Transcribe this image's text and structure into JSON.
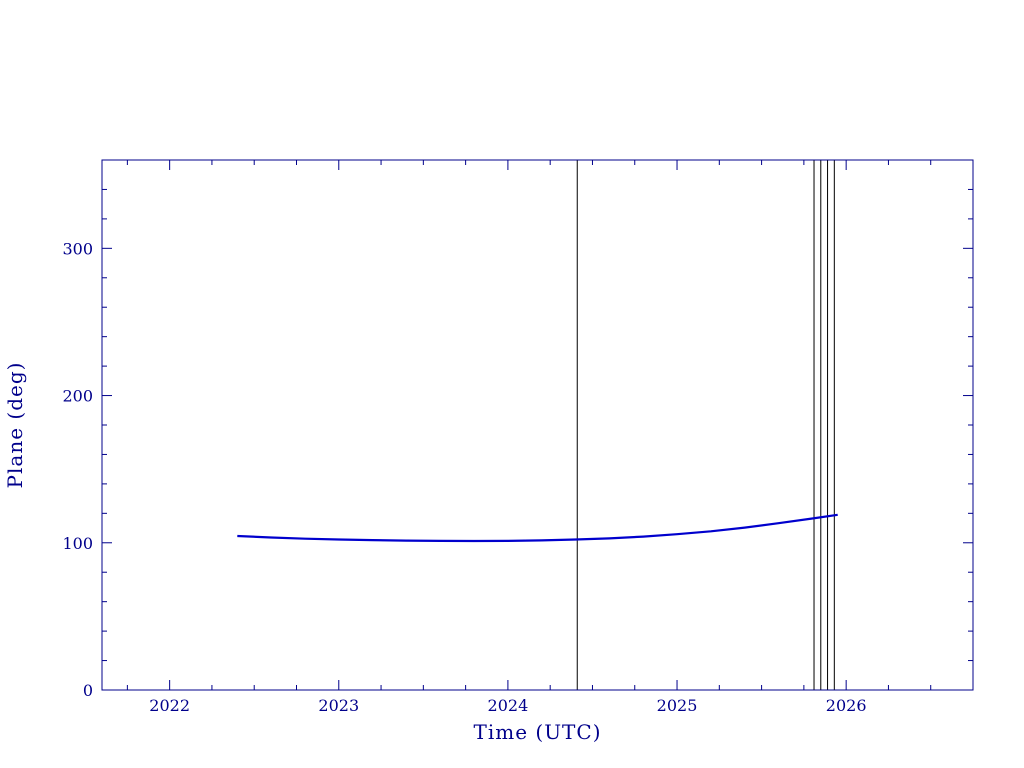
{
  "chart_data": {
    "type": "line",
    "title": "",
    "xlabel": "Time (UTC)",
    "ylabel": "Plane (deg)",
    "xlim": [
      2021.6,
      2026.75
    ],
    "ylim": [
      0,
      360
    ],
    "x_ticks": [
      2022,
      2023,
      2024,
      2025,
      2026
    ],
    "x_tick_labels": [
      "2022",
      "2023",
      "2024",
      "2025",
      "2026"
    ],
    "y_ticks": [
      0,
      100,
      200,
      300
    ],
    "y_tick_labels": [
      "0",
      "100",
      "200",
      "300"
    ],
    "grid": false,
    "colors": {
      "axis": "#00008b",
      "series": "#0000cd",
      "markers": "#000000"
    },
    "series": [
      {
        "x": [
          2022.4,
          2022.6,
          2022.8,
          2023.0,
          2023.2,
          2023.4,
          2023.6,
          2023.8,
          2024.0,
          2024.2,
          2024.4,
          2024.6,
          2024.8,
          2025.0,
          2025.2,
          2025.4,
          2025.6,
          2025.8,
          2025.95
        ],
        "y": [
          104.6,
          103.6,
          102.8,
          102.2,
          101.8,
          101.5,
          101.3,
          101.2,
          101.3,
          101.6,
          102.2,
          103.0,
          104.2,
          105.8,
          107.8,
          110.3,
          113.3,
          116.5,
          119.0
        ]
      }
    ],
    "vertical_markers": [
      2024.41,
      2025.81,
      2025.85,
      2025.89,
      2025.93
    ]
  }
}
